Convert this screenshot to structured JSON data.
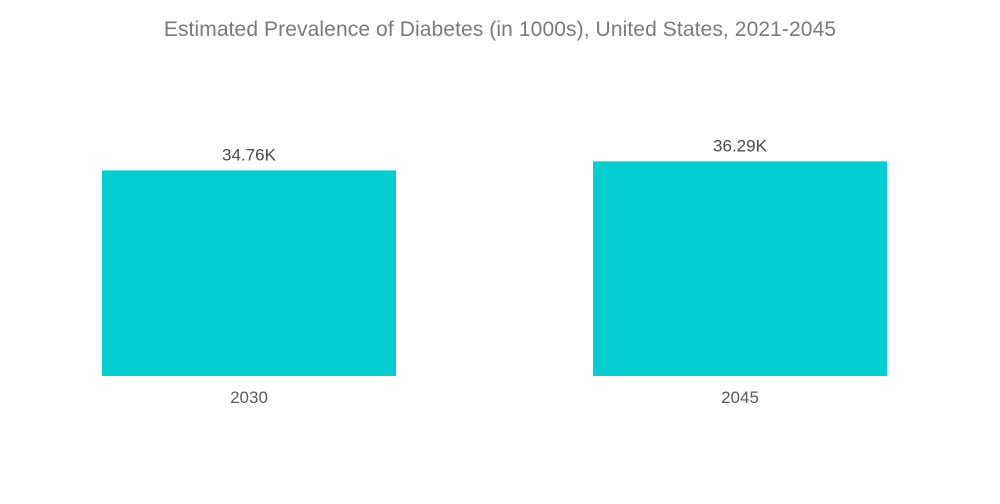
{
  "chart_data": {
    "type": "bar",
    "title": "Estimated Prevalence of Diabetes (in 1000s), United States, 2021-2045",
    "xlabel": "",
    "ylabel": "",
    "categories": [
      "2030",
      "2045"
    ],
    "values": [
      34.76,
      36.29
    ],
    "value_labels": [
      "34.76K",
      "36.29K"
    ],
    "ylim": [
      0,
      38
    ],
    "grid": false,
    "bar_color": "#00ced1"
  }
}
